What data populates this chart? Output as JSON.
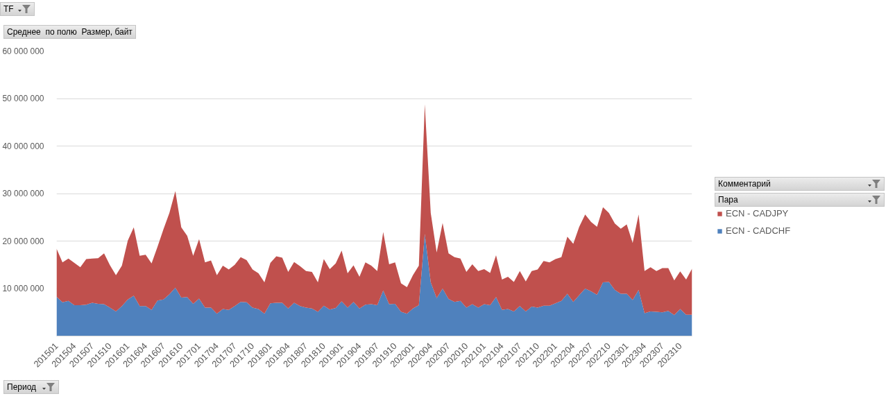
{
  "chart_data": {
    "type": "area",
    "stacked": true,
    "ylabel": "Среднее  по полю  Размер, байт",
    "xlabel": "Период",
    "annotations": [
      "TF",
      "Комментарий",
      "Пара"
    ],
    "categories": [
      "201501",
      null,
      null,
      "201504",
      null,
      null,
      "201507",
      null,
      null,
      "201510",
      null,
      null,
      "201601",
      null,
      null,
      "201604",
      null,
      null,
      "201607",
      null,
      null,
      "201610",
      null,
      null,
      "201701",
      null,
      null,
      "201704",
      null,
      null,
      "201707",
      null,
      null,
      "201710",
      null,
      null,
      "201801",
      null,
      null,
      "201804",
      null,
      null,
      "201807",
      null,
      null,
      "201810",
      null,
      null,
      "201901",
      null,
      null,
      "201904",
      null,
      null,
      "201907",
      null,
      null,
      "201910",
      null,
      null,
      "202001",
      null,
      null,
      "202004",
      null,
      null,
      "202007",
      null,
      null,
      "202010",
      null,
      null,
      "202101",
      null,
      null,
      "202104",
      null,
      null,
      "202107",
      null,
      null,
      "202110",
      null,
      null,
      "202201",
      null,
      null,
      "202204",
      null,
      null,
      "202207",
      null,
      null,
      "202210",
      null,
      null,
      "202301",
      null,
      null,
      "202304",
      null,
      null,
      "202307",
      null,
      null,
      "202310",
      null,
      null
    ],
    "series": [
      {
        "name": "ECN - CADCHF",
        "color": "#4f81bd",
        "values": [
          8300000,
          7100000,
          7400000,
          6500000,
          6500000,
          6600000,
          7000000,
          6800000,
          6700000,
          6000000,
          5200000,
          6300000,
          7700000,
          8500000,
          6300000,
          6300000,
          5500000,
          7500000,
          7700000,
          8800000,
          10200000,
          8100000,
          8200000,
          6800000,
          7900000,
          6000000,
          6000000,
          4700000,
          5700000,
          5500000,
          6300000,
          7200000,
          7100000,
          6000000,
          5700000,
          4700000,
          6900000,
          7000000,
          7000000,
          5800000,
          7000000,
          6300000,
          6000000,
          5800000,
          5100000,
          6400000,
          5600000,
          5900000,
          7300000,
          6000000,
          7200000,
          5800000,
          6600000,
          6700000,
          6500000,
          9600000,
          6700000,
          6800000,
          5100000,
          4700000,
          5800000,
          6500000,
          21500000,
          11300000,
          8000000,
          10000000,
          7800000,
          7200000,
          7400000,
          6000000,
          6700000,
          6000000,
          6700000,
          6500000,
          8200000,
          5500000,
          5700000,
          5200000,
          6300000,
          5200000,
          6200000,
          6000000,
          6400000,
          6400000,
          6900000,
          7400000,
          8900000,
          7200000,
          8600000,
          10000000,
          9400000,
          8700000,
          11300000,
          11400000,
          9700000,
          8900000,
          8900000,
          7600000,
          9700000,
          4800000,
          5200000,
          5100000,
          5000000,
          5300000,
          4400000,
          5700000,
          4500000,
          4500000
        ]
      },
      {
        "name": "ECN - CADJPY",
        "color": "#c0504d",
        "values": [
          10100000,
          8400000,
          8900000,
          8900000,
          8000000,
          9600000,
          9300000,
          9600000,
          10700000,
          8900000,
          7600000,
          8500000,
          12400000,
          14400000,
          10600000,
          10800000,
          9800000,
          11300000,
          14800000,
          17100000,
          20300000,
          14800000,
          12900000,
          10100000,
          12500000,
          9500000,
          9900000,
          8100000,
          9100000,
          8500000,
          8700000,
          9400000,
          8900000,
          8000000,
          7500000,
          6600000,
          8500000,
          9800000,
          9500000,
          7700000,
          8600000,
          8400000,
          7700000,
          7700000,
          6200000,
          9800000,
          8500000,
          9400000,
          10700000,
          7200000,
          7700000,
          6700000,
          8900000,
          8100000,
          7200000,
          12300000,
          8400000,
          8700000,
          6000000,
          5600000,
          7000000,
          8300000,
          27300000,
          14600000,
          9600000,
          13800000,
          9600000,
          9400000,
          8900000,
          7500000,
          8400000,
          7700000,
          7400000,
          6800000,
          8800000,
          6400000,
          6800000,
          6200000,
          7400000,
          6300000,
          7500000,
          8000000,
          9400000,
          9100000,
          9300000,
          9200000,
          12000000,
          12200000,
          14400000,
          15600000,
          14600000,
          14300000,
          15800000,
          14500000,
          14000000,
          13700000,
          14600000,
          12000000,
          15900000,
          8900000,
          9300000,
          8600000,
          9300000,
          9000000,
          7300000,
          7900000,
          7400000,
          9700000
        ]
      }
    ],
    "ylim": [
      0,
      60000000
    ],
    "yticks": [
      {
        "value": 0,
        "label": null
      },
      {
        "value": 10000000,
        "label": "10 000 000"
      },
      {
        "value": 20000000,
        "label": "20 000 000"
      },
      {
        "value": 30000000,
        "label": "30 000 000"
      },
      {
        "value": 40000000,
        "label": "40 000 000"
      },
      {
        "value": 50000000,
        "label": "50 000 000"
      },
      {
        "value": 60000000,
        "label": "60 000 000"
      }
    ],
    "grid": "y",
    "legend": "right"
  }
}
